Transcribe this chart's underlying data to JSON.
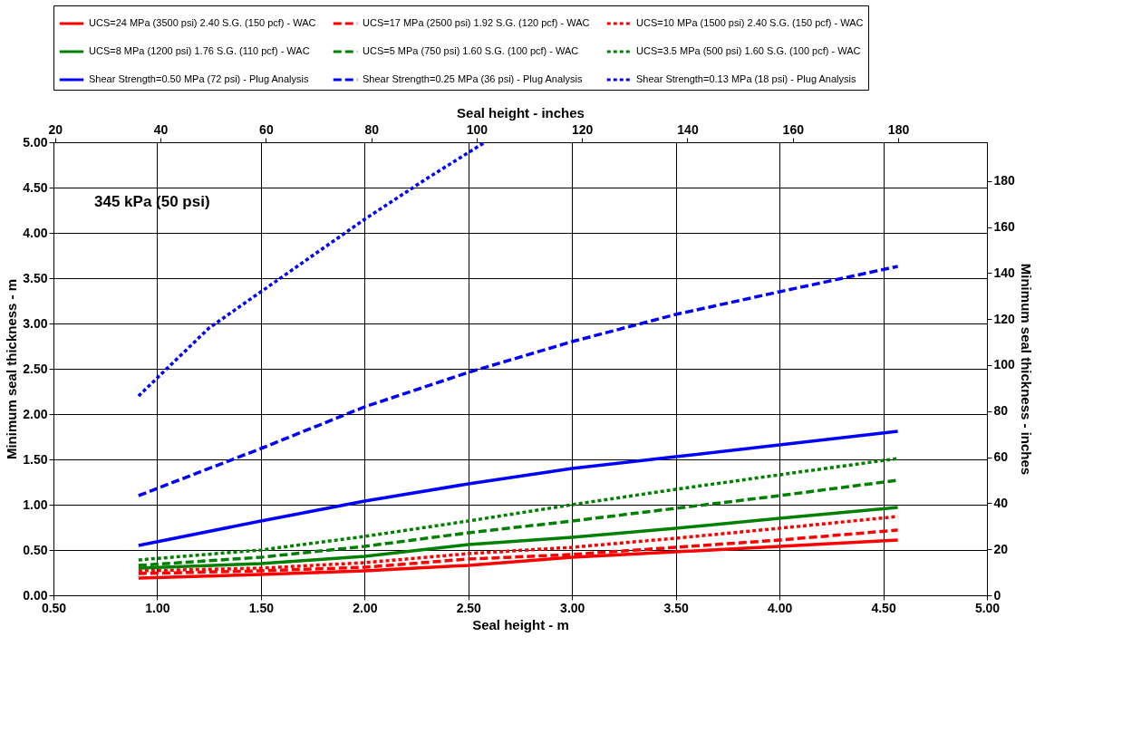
{
  "chart_data": {
    "type": "line",
    "xlabel": "Seal height - m",
    "ylabel": "Minimum seal thickness - m",
    "x2label": "Seal height - inches",
    "y2label": "Minimum seal thickness - inches",
    "annotations": [
      "345 kPa (50 psi)"
    ],
    "xlim": [
      0.5,
      5.0
    ],
    "ylim": [
      0.0,
      5.0
    ],
    "xticks": [
      {
        "value": 0.5,
        "label": "0.50"
      },
      {
        "value": 1.0,
        "label": "1.00"
      },
      {
        "value": 1.5,
        "label": "1.50"
      },
      {
        "value": 2.0,
        "label": "2.00"
      },
      {
        "value": 2.5,
        "label": "2.50"
      },
      {
        "value": 3.0,
        "label": "3.00"
      },
      {
        "value": 3.5,
        "label": "3.50"
      },
      {
        "value": 4.0,
        "label": "4.00"
      },
      {
        "value": 4.5,
        "label": "4.50"
      },
      {
        "value": 5.0,
        "label": "5.00"
      }
    ],
    "yticks": [
      {
        "value": 0.0,
        "label": "0.00"
      },
      {
        "value": 0.5,
        "label": "0.50"
      },
      {
        "value": 1.0,
        "label": "1.00"
      },
      {
        "value": 1.5,
        "label": "1.50"
      },
      {
        "value": 2.0,
        "label": "2.00"
      },
      {
        "value": 2.5,
        "label": "2.50"
      },
      {
        "value": 3.0,
        "label": "3.00"
      },
      {
        "value": 3.5,
        "label": "3.50"
      },
      {
        "value": 4.0,
        "label": "4.00"
      },
      {
        "value": 4.5,
        "label": "4.50"
      },
      {
        "value": 5.0,
        "label": "5.00"
      }
    ],
    "x2lim": [
      19.685,
      196.85
    ],
    "x2ticks": [
      20,
      40,
      60,
      80,
      100,
      120,
      140,
      160,
      180
    ],
    "y2lim": [
      0,
      196.85
    ],
    "y2ticks": [
      0,
      20,
      40,
      60,
      80,
      100,
      120,
      140,
      160,
      180
    ],
    "grid": true,
    "legend": "top",
    "x": [
      0.91,
      1.5,
      2.0,
      2.5,
      3.0,
      3.5,
      4.0,
      4.57
    ],
    "series": [
      {
        "name": "UCS=24 MPa (3500 psi) 2.40 S.G. (150 pcf) - WAC",
        "color": "#ff0000",
        "line_style": "solid",
        "values": [
          0.19,
          0.23,
          0.27,
          0.33,
          0.42,
          0.48,
          0.54,
          0.61
        ]
      },
      {
        "name": "UCS=17 MPa (2500 psi) 1.92 S.G. (120 pcf) - WAC",
        "color": "#ff0000",
        "line_style": "dashed",
        "values": [
          0.24,
          0.27,
          0.31,
          0.4,
          0.45,
          0.53,
          0.61,
          0.72
        ]
      },
      {
        "name": "UCS=10 MPa (1500 psi) 2.40 S.G. (150 pcf) - WAC",
        "color": "#ff0000",
        "line_style": "dotted",
        "values": [
          0.27,
          0.3,
          0.36,
          0.46,
          0.53,
          0.63,
          0.74,
          0.87
        ]
      },
      {
        "name": "UCS=8 MPa (1200 psi) 1.76 S.G. (110 pcf) - WAC",
        "color": "#008000",
        "line_style": "solid",
        "values": [
          0.3,
          0.35,
          0.43,
          0.56,
          0.64,
          0.74,
          0.85,
          0.97
        ]
      },
      {
        "name": "UCS=5 MPa (750 psi) 1.60 S.G. (100 pcf) - WAC",
        "color": "#008000",
        "line_style": "dashed",
        "values": [
          0.33,
          0.42,
          0.54,
          0.69,
          0.82,
          0.96,
          1.1,
          1.27
        ]
      },
      {
        "name": "UCS=3.5 MPa (500 psi) 1.60 S.G. (100 pcf) - WAC",
        "color": "#008000",
        "line_style": "dotted",
        "values": [
          0.39,
          0.5,
          0.65,
          0.82,
          1.0,
          1.17,
          1.33,
          1.51
        ]
      },
      {
        "name": "Shear Strength=0.50 MPa (72 psi) - Plug Analysis",
        "color": "#0000ff",
        "line_style": "solid",
        "values": [
          0.55,
          0.82,
          1.04,
          1.23,
          1.4,
          1.53,
          1.66,
          1.81
        ]
      },
      {
        "name": "Shear Strength=0.25 MPa (36 psi) - Plug Analysis",
        "color": "#0000ff",
        "line_style": "dashed",
        "values": [
          1.1,
          1.62,
          2.08,
          2.46,
          2.8,
          3.1,
          3.35,
          3.63
        ]
      },
      {
        "name": "Shear Strength=0.13 MPa (18 psi) - Plug Analysis",
        "color": "#0000ff",
        "line_style": "dotted",
        "x": [
          0.91,
          1.25,
          1.5,
          2.0,
          2.3,
          2.58
        ],
        "values": [
          2.2,
          2.95,
          3.35,
          4.15,
          4.6,
          5.0
        ]
      }
    ]
  }
}
